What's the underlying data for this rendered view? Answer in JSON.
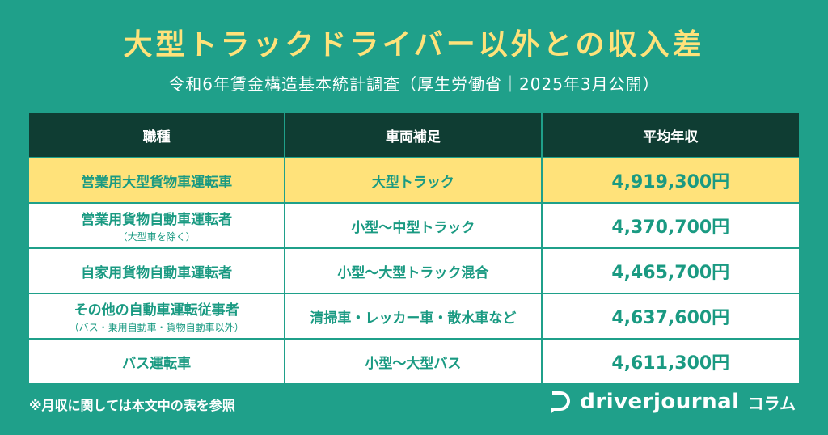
{
  "title": "大型トラックドライバー以外との収入差",
  "subtitle": "令和6年賃金構造基本統計調査（厚生労働省｜2025年3月公開）",
  "table": {
    "headers": [
      "職種",
      "車両補足",
      "平均年収"
    ],
    "rows": [
      {
        "job": "営業用大型貨物車運転車",
        "job_note": "",
        "vehicle": "大型トラック",
        "salary": "4,919,300円",
        "highlight": true
      },
      {
        "job": "営業用貨物自動車運転者",
        "job_note": "（大型車を除く）",
        "vehicle": "小型〜中型トラック",
        "salary": "4,370,700円",
        "highlight": false
      },
      {
        "job": "自家用貨物自動車運転者",
        "job_note": "",
        "vehicle": "小型〜大型トラック混合",
        "salary": "4,465,700円",
        "highlight": false
      },
      {
        "job": "その他の自動車運転従事者",
        "job_note": "（バス・乗用自動車・貨物自動車以外）",
        "vehicle": "清掃車・レッカー車・散水車など",
        "salary": "4,637,600円",
        "highlight": false
      },
      {
        "job": "バス運転車",
        "job_note": "",
        "vehicle": "小型〜大型バス",
        "salary": "4,611,300円",
        "highlight": false
      }
    ]
  },
  "footnote": "※月収に関しては本文中の表を参照",
  "brand": {
    "name": "driverjournal",
    "suffix": "コラム",
    "icon": "driver-journal-logo-icon"
  },
  "colors": {
    "background": "#1fa08a",
    "header": "#0f3d33",
    "highlight": "#ffe27a",
    "text_accent": "#1a9a82"
  }
}
